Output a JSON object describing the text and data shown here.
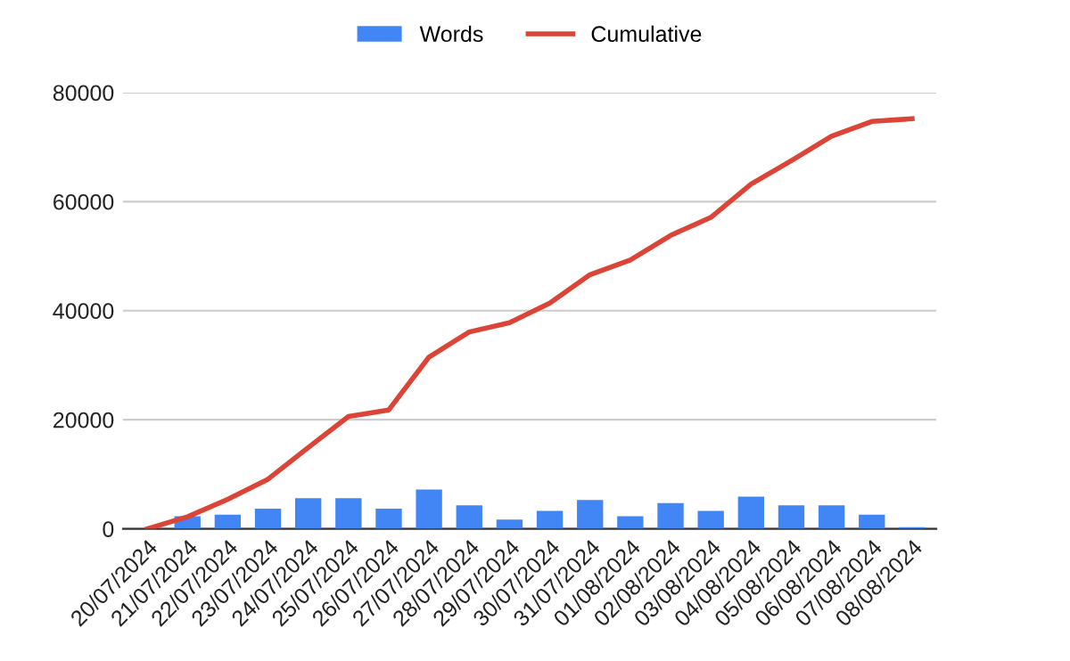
{
  "chart_data": {
    "type": "bar",
    "categories": [
      "20/07/2024",
      "21/07/2024",
      "22/07/2024",
      "23/07/2024",
      "24/07/2024",
      "25/07/2024",
      "26/07/2024",
      "27/07/2024",
      "28/07/2024",
      "29/07/2024",
      "30/07/2024",
      "31/07/2024",
      "01/08/2024",
      "02/08/2024",
      "03/08/2024",
      "04/08/2024",
      "05/08/2024",
      "06/08/2024",
      "07/08/2024",
      "08/08/2024"
    ],
    "series": [
      {
        "name": "Words",
        "color": "#4285f4",
        "values": [
          0,
          2300,
          2600,
          3700,
          5600,
          5600,
          3700,
          7200,
          4300,
          1700,
          3300,
          5300,
          2300,
          4700,
          3300,
          5900,
          4300,
          4300,
          2600,
          300
        ]
      },
      {
        "name": "Cumulative",
        "type": "line",
        "color": "#db4437",
        "values": [
          0,
          2200,
          5400,
          9100,
          14900,
          20600,
          21800,
          31500,
          36100,
          37800,
          41400,
          46600,
          49300,
          53800,
          57100,
          63200,
          67500,
          72000,
          74700,
          75200
        ]
      }
    ],
    "ylim": [
      0,
      80000
    ],
    "yticks": [
      0,
      20000,
      40000,
      60000,
      80000
    ],
    "grid": "y",
    "legend": "top"
  }
}
